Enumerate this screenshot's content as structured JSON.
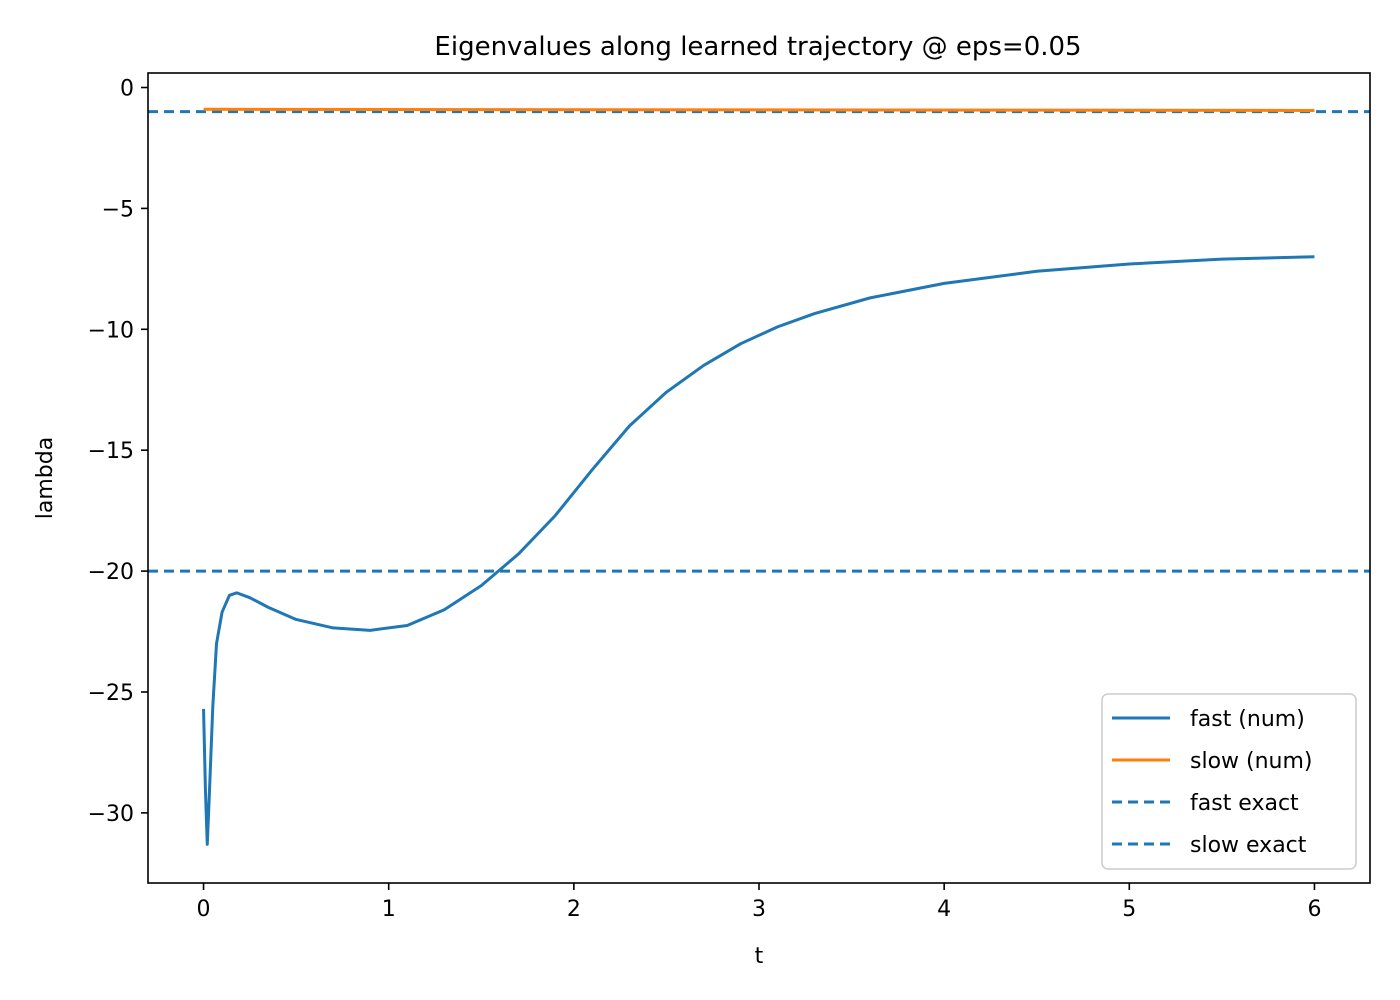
{
  "chart_data": {
    "type": "line",
    "title": "Eigenvalues along learned trajectory @ eps=0.05",
    "xlabel": "t",
    "ylabel": "lambda",
    "xlim": [
      -0.3,
      6.3
    ],
    "ylim": [
      -32.9,
      0.6
    ],
    "xticks": [
      0,
      1,
      2,
      3,
      4,
      5,
      6
    ],
    "xtick_labels": [
      "0",
      "1",
      "2",
      "3",
      "4",
      "5",
      "6"
    ],
    "yticks": [
      0,
      -5,
      -10,
      -15,
      -20,
      -25,
      -30
    ],
    "ytick_labels": [
      "0",
      "−5",
      "−10",
      "−15",
      "−20",
      "−25",
      "−30"
    ],
    "grid": false,
    "legend_position": "lower-right",
    "series": [
      {
        "name": "fast (num)",
        "style": "solid",
        "color": "#1f77b4",
        "x": [
          0,
          0.01,
          0.02,
          0.03,
          0.05,
          0.07,
          0.1,
          0.14,
          0.18,
          0.25,
          0.35,
          0.5,
          0.7,
          0.9,
          1.1,
          1.3,
          1.5,
          1.7,
          1.9,
          2.1,
          2.3,
          2.5,
          2.7,
          2.9,
          3.1,
          3.3,
          3.6,
          4.0,
          4.5,
          5.0,
          5.5,
          6.0
        ],
        "y": [
          -25.7,
          -29.0,
          -31.3,
          -29.5,
          -25.6,
          -23.0,
          -21.7,
          -21.0,
          -20.9,
          -21.1,
          -21.5,
          -22.0,
          -22.35,
          -22.45,
          -22.25,
          -21.6,
          -20.6,
          -19.3,
          -17.7,
          -15.8,
          -14.0,
          -12.6,
          -11.5,
          -10.6,
          -9.9,
          -9.35,
          -8.7,
          -8.1,
          -7.6,
          -7.3,
          -7.1,
          -7.0
        ]
      },
      {
        "name": "slow (num)",
        "style": "solid",
        "color": "#ff7f0e",
        "x": [
          0,
          6.0
        ],
        "y": [
          -0.9,
          -0.95
        ]
      }
    ],
    "reference_lines": [
      {
        "name": "fast exact",
        "style": "dashed",
        "color": "#1f77b4",
        "y": -20
      },
      {
        "name": "slow exact",
        "style": "dashed",
        "color": "#1f77b4",
        "y": -1
      }
    ]
  }
}
